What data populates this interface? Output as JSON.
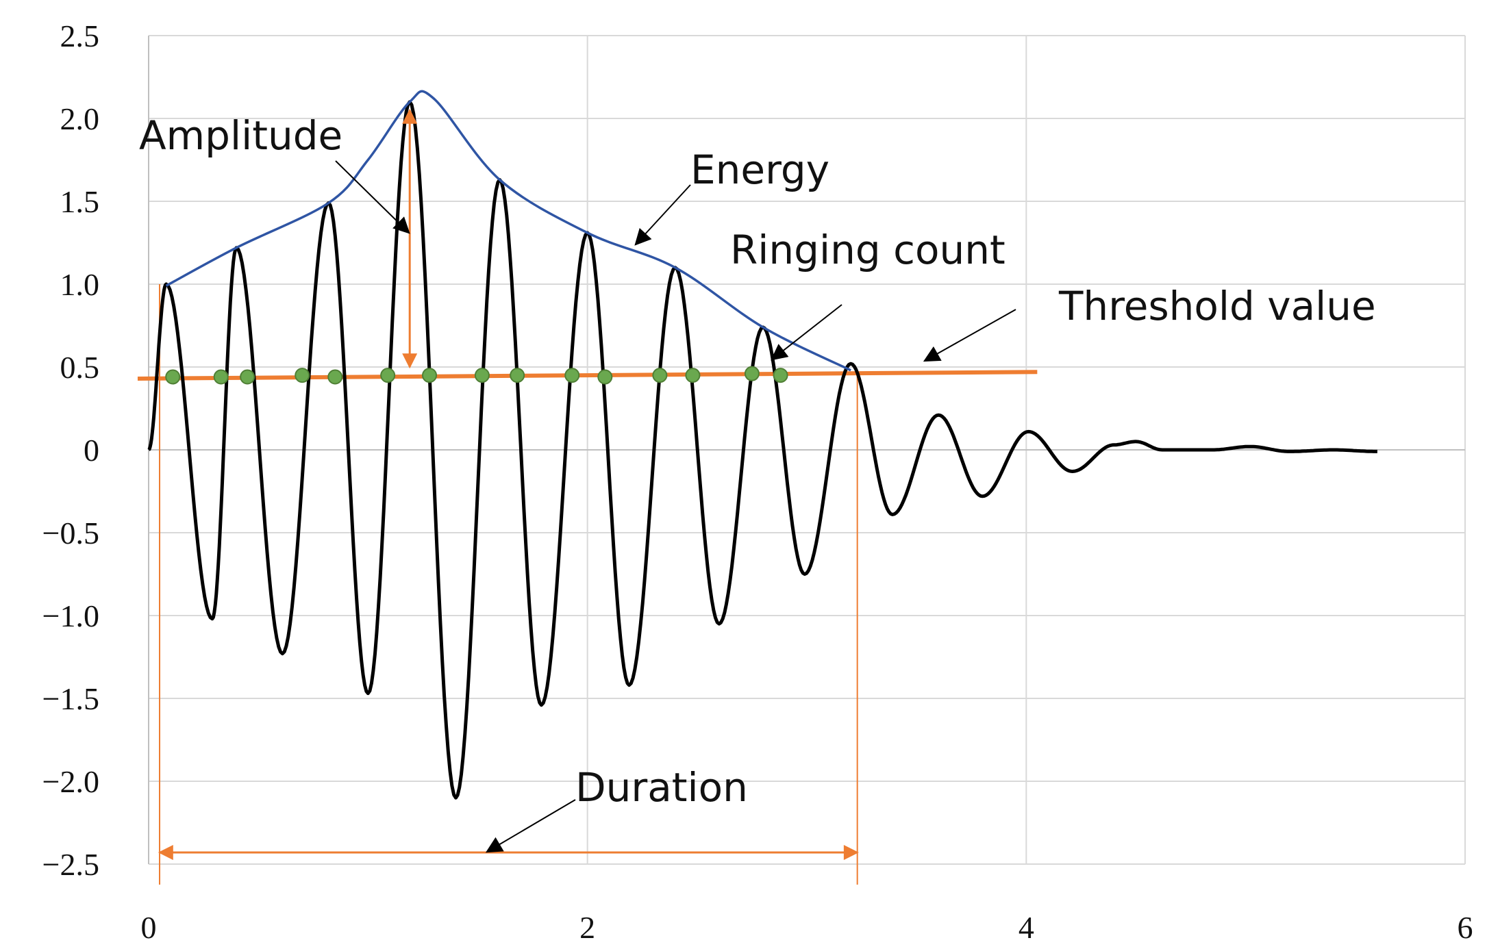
{
  "chart_data": {
    "type": "line",
    "title": "",
    "xlabel": "",
    "ylabel": "",
    "xlim": [
      0,
      6
    ],
    "ylim": [
      -2.5,
      2.5
    ],
    "x_ticks": [
      "0",
      "2",
      "4",
      "6"
    ],
    "y_ticks": [
      "2.5",
      "2.0",
      "1.5",
      "1.0",
      "0.5",
      "0",
      "−0.5",
      "−1.0",
      "−1.5",
      "−2.0",
      "−2.5"
    ],
    "grid": true,
    "series": [
      {
        "role": "waveform",
        "color": "#000000",
        "peaks": [
          {
            "x": 0.08,
            "y": 1.0
          },
          {
            "x": 0.29,
            "y": -1.02
          },
          {
            "x": 0.4,
            "y": 1.22
          },
          {
            "x": 0.61,
            "y": -1.23
          },
          {
            "x": 0.82,
            "y": 1.49
          },
          {
            "x": 1.0,
            "y": -1.47
          },
          {
            "x": 1.19,
            "y": 2.1
          },
          {
            "x": 1.4,
            "y": -2.1
          },
          {
            "x": 1.6,
            "y": 1.63
          },
          {
            "x": 1.79,
            "y": -1.54
          },
          {
            "x": 2.0,
            "y": 1.31
          },
          {
            "x": 2.19,
            "y": -1.42
          },
          {
            "x": 2.4,
            "y": 1.1
          },
          {
            "x": 2.6,
            "y": -1.05
          },
          {
            "x": 2.8,
            "y": 0.74
          },
          {
            "x": 2.99,
            "y": -0.75
          },
          {
            "x": 3.2,
            "y": 0.52
          },
          {
            "x": 3.39,
            "y": -0.39
          },
          {
            "x": 3.6,
            "y": 0.21
          },
          {
            "x": 3.8,
            "y": -0.28
          },
          {
            "x": 4.01,
            "y": 0.11
          },
          {
            "x": 4.21,
            "y": -0.13
          },
          {
            "x": 4.4,
            "y": 0.03
          },
          {
            "x": 4.5,
            "y": 0.05
          },
          {
            "x": 4.62,
            "y": 0.0
          },
          {
            "x": 4.85,
            "y": 0.0
          },
          {
            "x": 5.02,
            "y": 0.02
          },
          {
            "x": 5.2,
            "y": -0.01
          },
          {
            "x": 5.4,
            "y": 0.0
          }
        ],
        "start": {
          "x": 0.0,
          "y": 0.0
        },
        "end": {
          "x": 5.6,
          "y": -0.01
        }
      },
      {
        "role": "envelope",
        "color": "#2f55a4",
        "points": [
          {
            "x": 0.08,
            "y": 0.99
          },
          {
            "x": 0.4,
            "y": 1.22
          },
          {
            "x": 0.82,
            "y": 1.49
          },
          {
            "x": 1.0,
            "y": 1.75
          },
          {
            "x": 1.19,
            "y": 2.1
          },
          {
            "x": 1.3,
            "y": 2.12
          },
          {
            "x": 1.6,
            "y": 1.63
          },
          {
            "x": 2.0,
            "y": 1.31
          },
          {
            "x": 2.4,
            "y": 1.1
          },
          {
            "x": 2.8,
            "y": 0.74
          },
          {
            "x": 3.2,
            "y": 0.48
          }
        ]
      },
      {
        "role": "threshold",
        "color": "#ee7d31",
        "points": [
          {
            "x": -0.05,
            "y": 0.43
          },
          {
            "x": 4.05,
            "y": 0.47
          }
        ]
      },
      {
        "role": "crossings",
        "color": "#6aa84f",
        "x": [
          0.11,
          0.33,
          0.45,
          0.7,
          0.85,
          1.09,
          1.28,
          1.52,
          1.68,
          1.93,
          2.08,
          2.33,
          2.48,
          2.75,
          2.88
        ],
        "y": [
          0.44,
          0.44,
          0.44,
          0.45,
          0.44,
          0.45,
          0.45,
          0.45,
          0.45,
          0.45,
          0.44,
          0.45,
          0.45,
          0.46,
          0.45
        ]
      }
    ],
    "annotations": {
      "amplitude": "Amplitude",
      "energy": "Energy",
      "ringing_count": "Ringing count",
      "threshold": "Threshold value",
      "duration": "Duration"
    },
    "amplitude_span": {
      "x": 1.19,
      "from": 0.5,
      "to": 2.05
    },
    "duration_span": {
      "from": 0.05,
      "to": 3.23,
      "y": -2.43
    }
  }
}
